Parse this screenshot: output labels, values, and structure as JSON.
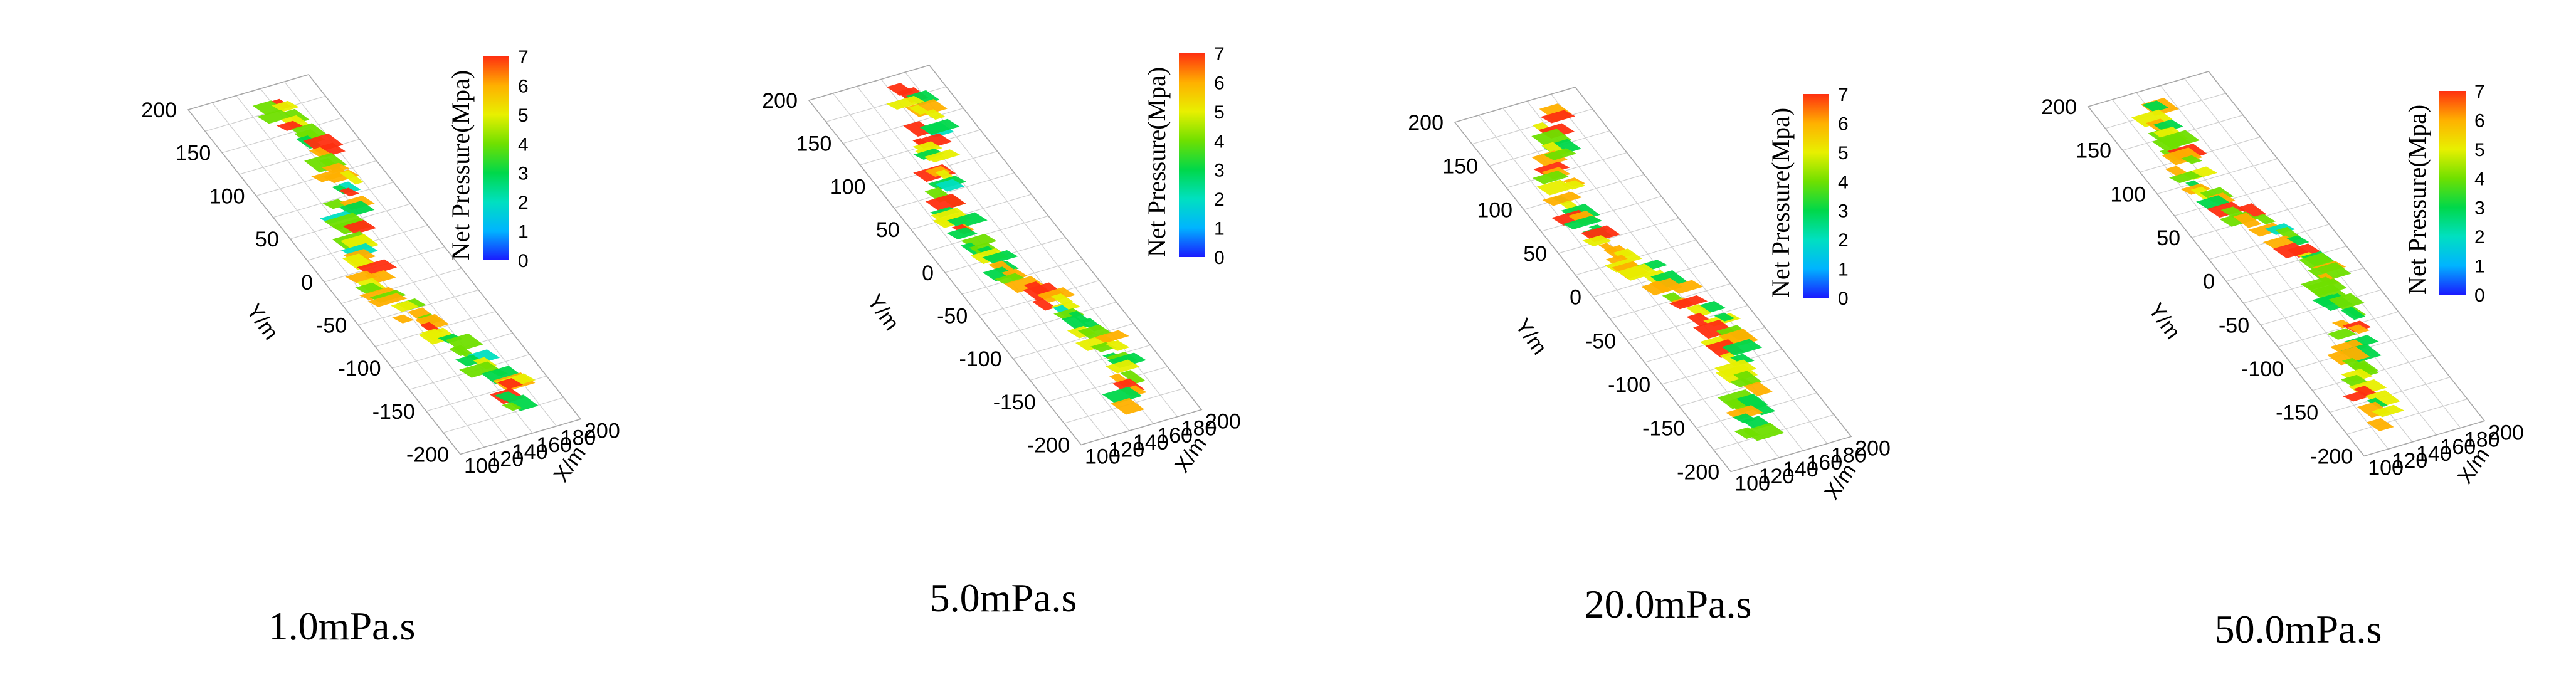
{
  "colorbar": {
    "title": "Net Pressure(Mpa)",
    "ticks": [
      "0",
      "1",
      "2",
      "3",
      "4",
      "5",
      "6",
      "7"
    ],
    "colors": [
      "#1a1aff",
      "#00b4ff",
      "#00e0c0",
      "#00d84a",
      "#6fe000",
      "#e8f000",
      "#ffb000",
      "#ff3010"
    ]
  },
  "axes": {
    "y_label": "Y/m",
    "x_label": "X/m",
    "y_ticks": [
      "200",
      "150",
      "100",
      "50",
      "0",
      "-50",
      "-100",
      "-150",
      "-200"
    ],
    "x_ticks": [
      "100",
      "120",
      "140",
      "160",
      "180",
      "200"
    ]
  },
  "chart_data": [
    {
      "type": "heatmap",
      "caption": "1.0mPa.s",
      "x_range": [
        100,
        200
      ],
      "y_range": [
        -200,
        200
      ],
      "z_range": [
        0,
        7
      ],
      "colorbar_title": "Net Pressure(Mpa)"
    },
    {
      "type": "heatmap",
      "caption": "5.0mPa.s",
      "x_range": [
        100,
        200
      ],
      "y_range": [
        -200,
        200
      ],
      "z_range": [
        0,
        7
      ],
      "colorbar_title": "Net Pressure(Mpa)"
    },
    {
      "type": "heatmap",
      "caption": "20.0mPa.s",
      "x_range": [
        100,
        200
      ],
      "y_range": [
        -200,
        200
      ],
      "z_range": [
        0,
        7
      ],
      "colorbar_title": "Net Pressure(Mpa)"
    },
    {
      "type": "heatmap",
      "caption": "50.0mPa.s",
      "x_range": [
        100,
        200
      ],
      "y_range": [
        -200,
        200
      ],
      "z_range": [
        0,
        7
      ],
      "colorbar_title": "Net Pressure(Mpa)"
    }
  ]
}
